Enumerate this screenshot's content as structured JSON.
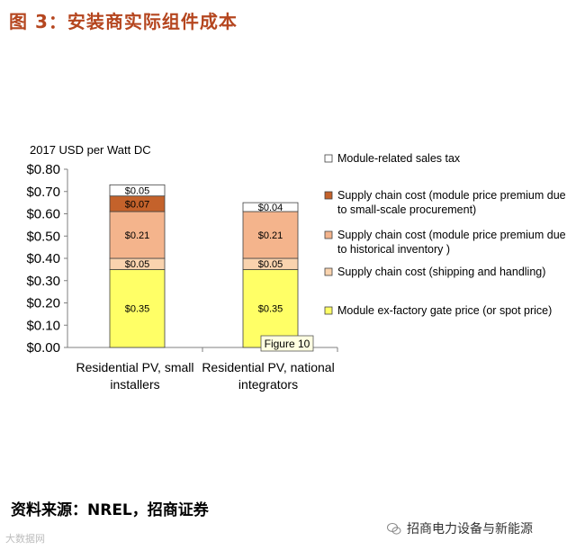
{
  "header": {
    "title": "图 3：安装商实际组件成本"
  },
  "footer": {
    "source": "资料来源：NREL，招商证券",
    "watermark_right": "招商电力设备与新能源",
    "watermark_left": "大数据网"
  },
  "chart_data": {
    "type": "bar",
    "stacked": true,
    "unit_label": "2017 USD per Watt DC",
    "y_ticks": [
      "$0.80",
      "$0.70",
      "$0.60",
      "$0.50",
      "$0.40",
      "$0.30",
      "$0.20",
      "$0.10",
      "$0.00"
    ],
    "ylim": [
      0,
      0.8
    ],
    "categories": [
      [
        "Residential PV, small",
        "installers"
      ],
      [
        "Residential PV, national",
        "integrators"
      ]
    ],
    "series": [
      {
        "name": "Module ex-factory gate price (or spot price)",
        "color": "#ffff66",
        "values": [
          0.35,
          0.35
        ],
        "labels": [
          "$0.35",
          "$0.35"
        ]
      },
      {
        "name": "Supply chain cost (shipping and handling)",
        "color": "#f9d3ae",
        "values": [
          0.05,
          0.05
        ],
        "labels": [
          "$0.05",
          "$0.05"
        ]
      },
      {
        "name": "Supply chain cost (module price premium due to historical inventory )",
        "color": "#f4b48c",
        "values": [
          0.21,
          0.21
        ],
        "labels": [
          "$0.21",
          "$0.21"
        ]
      },
      {
        "name": "Supply chain cost (module price premium due to small-scale procurement)",
        "color": "#c4622b",
        "values": [
          0.07,
          0
        ],
        "labels": [
          "$0.07",
          ""
        ]
      },
      {
        "name": "Module-related sales tax",
        "color": "#ffffff",
        "values": [
          0.05,
          0.04
        ],
        "labels": [
          "$0.05",
          "$0.04"
        ]
      }
    ],
    "legend": [
      {
        "lines": [
          "Module-related sales tax"
        ],
        "color": "#ffffff"
      },
      {
        "lines": [
          "Supply chain cost (module price premium due",
          "to small-scale procurement)"
        ],
        "color": "#c4622b"
      },
      {
        "lines": [
          "Supply chain cost (module price premium due",
          "to historical inventory )"
        ],
        "color": "#f4b48c"
      },
      {
        "lines": [
          "Supply chain cost (shipping and handling)"
        ],
        "color": "#f9d3ae"
      },
      {
        "lines": [
          "Module ex-factory gate price (or spot price)"
        ],
        "color": "#ffff66"
      }
    ],
    "legend_position": "right",
    "tooltip": "Figure 10",
    "grid": false
  }
}
